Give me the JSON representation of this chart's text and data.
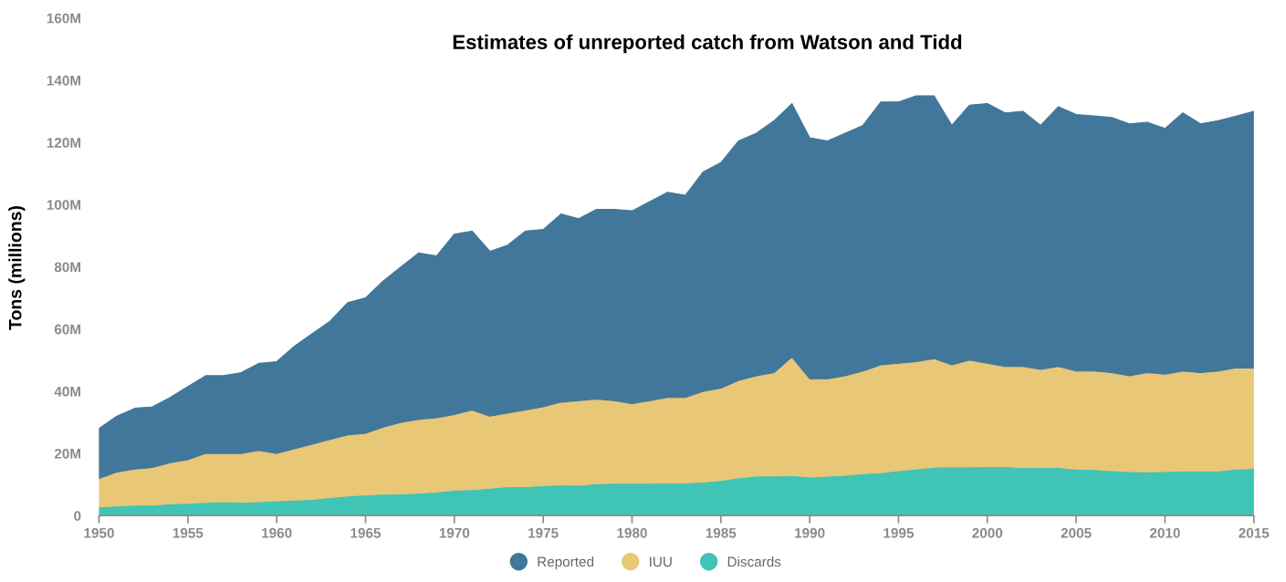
{
  "chart_data": {
    "type": "area",
    "stacked": true,
    "title": "Estimates of unreported catch from Watson and Tidd",
    "ylabel": "Tons (millions)",
    "x": [
      1950,
      1951,
      1952,
      1953,
      1954,
      1955,
      1956,
      1957,
      1958,
      1959,
      1960,
      1961,
      1962,
      1963,
      1964,
      1965,
      1966,
      1967,
      1968,
      1969,
      1970,
      1971,
      1972,
      1973,
      1974,
      1975,
      1976,
      1977,
      1978,
      1979,
      1980,
      1981,
      1982,
      1983,
      1984,
      1985,
      1986,
      1987,
      1988,
      1989,
      1990,
      1991,
      1992,
      1993,
      1994,
      1995,
      1996,
      1997,
      1998,
      1999,
      2000,
      2001,
      2002,
      2003,
      2004,
      2005,
      2006,
      2007,
      2008,
      2009,
      2010,
      2011,
      2012,
      2013,
      2014,
      2015
    ],
    "series": [
      {
        "name": "Discards",
        "color": "#3fc4b5",
        "values": [
          2.8,
          3.1,
          3.4,
          3.4,
          3.8,
          4.0,
          4.3,
          4.5,
          4.3,
          4.5,
          4.8,
          5.0,
          5.2,
          5.8,
          6.3,
          6.7,
          6.9,
          7.0,
          7.2,
          7.6,
          8.2,
          8.4,
          8.8,
          9.3,
          9.3,
          9.6,
          9.9,
          9.8,
          10.3,
          10.4,
          10.4,
          10.4,
          10.5,
          10.5,
          10.8,
          11.3,
          12.2,
          12.8,
          12.8,
          12.9,
          12.4,
          12.7,
          13.0,
          13.5,
          13.8,
          14.5,
          15.0,
          15.6,
          15.8,
          15.7,
          15.8,
          15.8,
          15.4,
          15.6,
          15.5,
          15.0,
          14.8,
          14.5,
          14.2,
          14.1,
          14.2,
          14.4,
          14.4,
          14.4,
          15.0,
          15.2
        ]
      },
      {
        "name": "IUU",
        "color": "#e8c777",
        "values": [
          9.2,
          10.9,
          11.6,
          12.1,
          13.2,
          14.0,
          15.7,
          15.5,
          15.7,
          16.5,
          15.2,
          16.5,
          17.8,
          18.7,
          19.7,
          19.8,
          21.6,
          23.0,
          23.8,
          23.9,
          24.3,
          25.6,
          23.2,
          23.7,
          24.7,
          25.4,
          26.6,
          27.2,
          27.2,
          26.6,
          25.6,
          26.6,
          27.5,
          27.5,
          29.2,
          29.7,
          31.3,
          32.2,
          33.2,
          38.1,
          31.6,
          31.3,
          32.0,
          33.0,
          34.7,
          34.5,
          34.5,
          34.9,
          32.7,
          34.3,
          33.2,
          32.2,
          32.6,
          31.4,
          32.5,
          31.5,
          31.7,
          31.5,
          30.8,
          31.9,
          31.3,
          32.1,
          31.6,
          32.1,
          32.5,
          32.3
        ]
      },
      {
        "name": "Reported",
        "color": "#41779a",
        "values": [
          16,
          18,
          19.5,
          19.5,
          21,
          23.5,
          25,
          25,
          26,
          28,
          29.5,
          33,
          35.5,
          38,
          42.5,
          43.5,
          47,
          50,
          53.5,
          52,
          58,
          57.5,
          53,
          54,
          57.5,
          57,
          60.5,
          58.5,
          61,
          61.5,
          62,
          64,
          66,
          65,
          70.5,
          72.5,
          77,
          78,
          81,
          81.5,
          77.5,
          76.5,
          78,
          79,
          84.5,
          84,
          85.5,
          84.5,
          77,
          82,
          83.5,
          81.5,
          82,
          78.5,
          83.5,
          82.5,
          82,
          82,
          81,
          80.5,
          79,
          83,
          80,
          80.5,
          81,
          82.5
        ]
      }
    ],
    "xlim": [
      1950,
      2015
    ],
    "xticks": [
      1950,
      1955,
      1960,
      1965,
      1970,
      1975,
      1980,
      1985,
      1990,
      1995,
      2000,
      2005,
      2010,
      2015
    ],
    "ylim": [
      0,
      160
    ],
    "yticks": [
      0,
      {
        "value": 20,
        "label": "20M"
      },
      {
        "value": 40,
        "label": "40M"
      },
      {
        "value": 60,
        "label": "60M"
      },
      {
        "value": 80,
        "label": "80M"
      },
      {
        "value": 100,
        "label": "100M"
      },
      {
        "value": 120,
        "label": "120M"
      },
      {
        "value": 140,
        "label": "140M"
      },
      {
        "value": 160,
        "label": "160M"
      }
    ],
    "grid": false,
    "legend": "bottom"
  }
}
